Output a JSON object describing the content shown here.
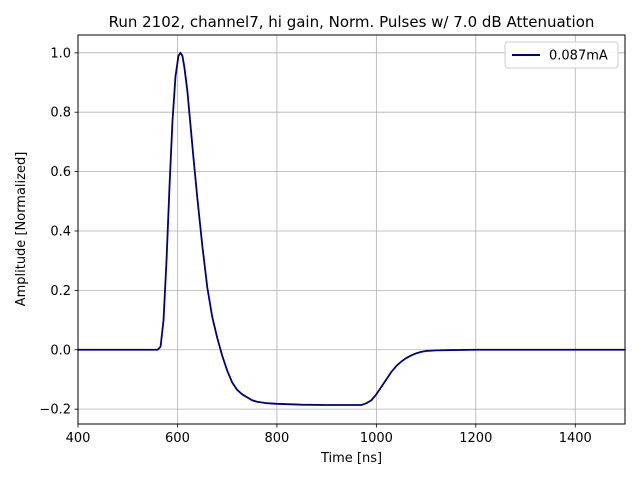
{
  "chart_data": {
    "type": "line",
    "title": "Run 2102, channel7, hi gain, Norm. Pulses w/ 7.0 dB Attenuation",
    "xlabel": "Time [ns]",
    "ylabel": "Amplitude [Normalized]",
    "xlim": [
      400,
      1500
    ],
    "ylim": [
      -0.25,
      1.06
    ],
    "xticks": [
      400,
      600,
      800,
      1000,
      1200,
      1400
    ],
    "yticks": [
      -0.2,
      0.0,
      0.2,
      0.4,
      0.6,
      0.8,
      1.0
    ],
    "xtick_labels": [
      "400",
      "600",
      "800",
      "1000",
      "1200",
      "1400"
    ],
    "ytick_labels": [
      "−0.2",
      "0.0",
      "0.2",
      "0.4",
      "0.6",
      "0.8",
      "1.0"
    ],
    "grid": true,
    "legend_position": "top-right",
    "series": [
      {
        "name": "0.087mA",
        "color": "#00007f",
        "x": [
          400,
          450,
          500,
          540,
          560,
          566,
          572,
          578,
          584,
          590,
          596,
          602,
          606,
          610,
          614,
          620,
          626,
          632,
          640,
          650,
          660,
          670,
          680,
          690,
          700,
          710,
          720,
          730,
          740,
          750,
          760,
          780,
          800,
          850,
          900,
          950,
          970,
          980,
          990,
          1000,
          1010,
          1020,
          1030,
          1040,
          1050,
          1060,
          1070,
          1080,
          1090,
          1100,
          1120,
          1150,
          1200,
          1300,
          1400,
          1500
        ],
        "y": [
          0.0,
          0.0,
          0.0,
          0.0,
          0.0,
          0.01,
          0.1,
          0.3,
          0.55,
          0.77,
          0.92,
          0.99,
          1.0,
          0.99,
          0.95,
          0.87,
          0.76,
          0.65,
          0.51,
          0.35,
          0.21,
          0.11,
          0.04,
          -0.02,
          -0.07,
          -0.11,
          -0.135,
          -0.15,
          -0.16,
          -0.17,
          -0.175,
          -0.18,
          -0.182,
          -0.185,
          -0.186,
          -0.186,
          -0.186,
          -0.18,
          -0.17,
          -0.15,
          -0.125,
          -0.1,
          -0.075,
          -0.055,
          -0.04,
          -0.028,
          -0.019,
          -0.012,
          -0.007,
          -0.004,
          -0.002,
          -0.001,
          0.0,
          0.0,
          0.0,
          0.0
        ]
      }
    ]
  }
}
